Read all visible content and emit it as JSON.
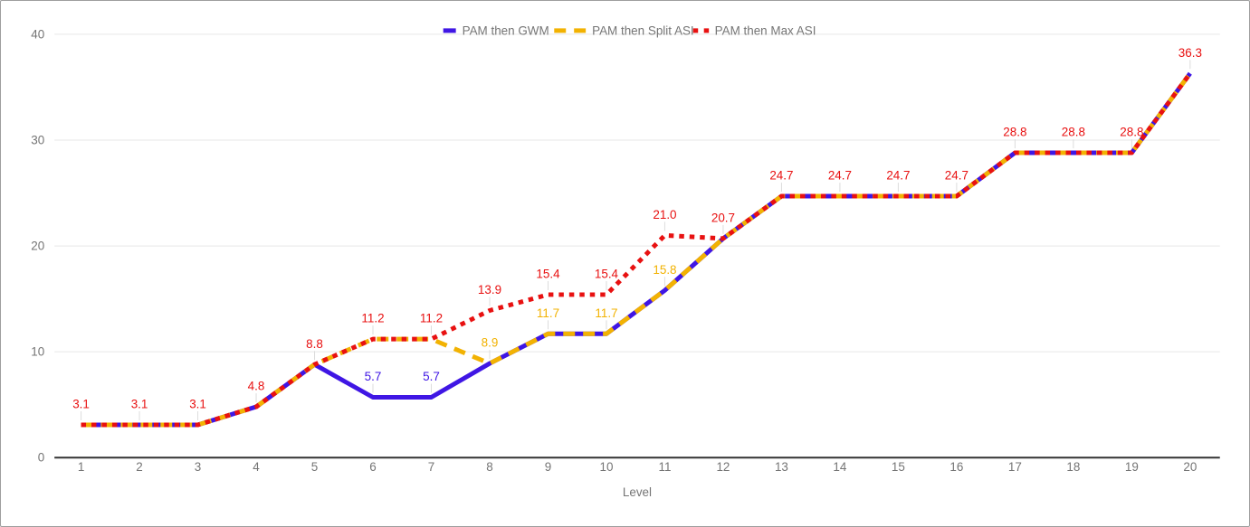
{
  "chart_data": {
    "type": "line",
    "title": "",
    "xlabel": "Level",
    "ylabel": "",
    "x": [
      1,
      2,
      3,
      4,
      5,
      6,
      7,
      8,
      9,
      10,
      11,
      12,
      13,
      14,
      15,
      16,
      17,
      18,
      19,
      20
    ],
    "ylim": [
      0,
      40
    ],
    "yticks": [
      0,
      10,
      20,
      30,
      40
    ],
    "grid": "horizontal-only",
    "legend_position": "top-center",
    "series": [
      {
        "name": "PAM then GWM",
        "color": "#3F16E4",
        "line_style": "solid",
        "values": [
          3.1,
          3.1,
          3.1,
          4.8,
          8.8,
          5.7,
          5.7,
          8.9,
          11.7,
          11.7,
          15.8,
          20.7,
          24.7,
          24.7,
          24.7,
          24.7,
          28.8,
          28.8,
          28.8,
          36.3
        ]
      },
      {
        "name": "PAM then Split ASI",
        "color": "#F2B202",
        "line_style": "dashed",
        "values": [
          3.1,
          3.1,
          3.1,
          4.8,
          8.8,
          11.2,
          11.2,
          8.9,
          11.7,
          11.7,
          15.8,
          20.7,
          24.7,
          24.7,
          24.7,
          24.7,
          28.8,
          28.8,
          28.8,
          36.3
        ]
      },
      {
        "name": "PAM then Max ASI",
        "color": "#E81111",
        "line_style": "dotted",
        "values": [
          3.1,
          3.1,
          3.1,
          4.8,
          8.8,
          11.2,
          11.2,
          13.9,
          15.4,
          15.4,
          21.0,
          20.7,
          24.7,
          24.7,
          24.7,
          24.7,
          28.8,
          28.8,
          28.8,
          36.3
        ]
      }
    ],
    "visible_point_labels": [
      {
        "x": 1,
        "text": "3.1",
        "series": 2
      },
      {
        "x": 2,
        "text": "3.1",
        "series": 2
      },
      {
        "x": 3,
        "text": "3.1",
        "series": 2
      },
      {
        "x": 4,
        "text": "4.8",
        "series": 2
      },
      {
        "x": 5,
        "text": "8.8",
        "series": 2
      },
      {
        "x": 6,
        "text": "11.2",
        "series": 2
      },
      {
        "x": 7,
        "text": "11.2",
        "series": 2
      },
      {
        "x": 8,
        "text": "13.9",
        "series": 2
      },
      {
        "x": 9,
        "text": "15.4",
        "series": 2
      },
      {
        "x": 10,
        "text": "15.4",
        "series": 2
      },
      {
        "x": 11,
        "text": "21.0",
        "series": 2
      },
      {
        "x": 12,
        "text": "20.7",
        "series": 2
      },
      {
        "x": 13,
        "text": "24.7",
        "series": 2
      },
      {
        "x": 14,
        "text": "24.7",
        "series": 2
      },
      {
        "x": 15,
        "text": "24.7",
        "series": 2
      },
      {
        "x": 16,
        "text": "24.7",
        "series": 2
      },
      {
        "x": 17,
        "text": "28.8",
        "series": 2
      },
      {
        "x": 18,
        "text": "28.8",
        "series": 2
      },
      {
        "x": 19,
        "text": "28.8",
        "series": 2
      },
      {
        "x": 20,
        "text": "36.3",
        "series": 2
      },
      {
        "x": 8,
        "text": "8.9",
        "series": 1
      },
      {
        "x": 9,
        "text": "11.7",
        "series": 1
      },
      {
        "x": 10,
        "text": "11.7",
        "series": 1
      },
      {
        "x": 11,
        "text": "15.8",
        "series": 1
      },
      {
        "x": 6,
        "text": "5.7",
        "series": 0
      },
      {
        "x": 7,
        "text": "5.7",
        "series": 0
      }
    ],
    "colors": {
      "background": "#FFFFFF",
      "frame_border": "#9E9E9E",
      "grid": "#E7E7E7",
      "axis_baseline": "#333333",
      "axis_text": "#757575",
      "legend_text": "#757575",
      "label_connector": "#DCDCDC"
    }
  }
}
